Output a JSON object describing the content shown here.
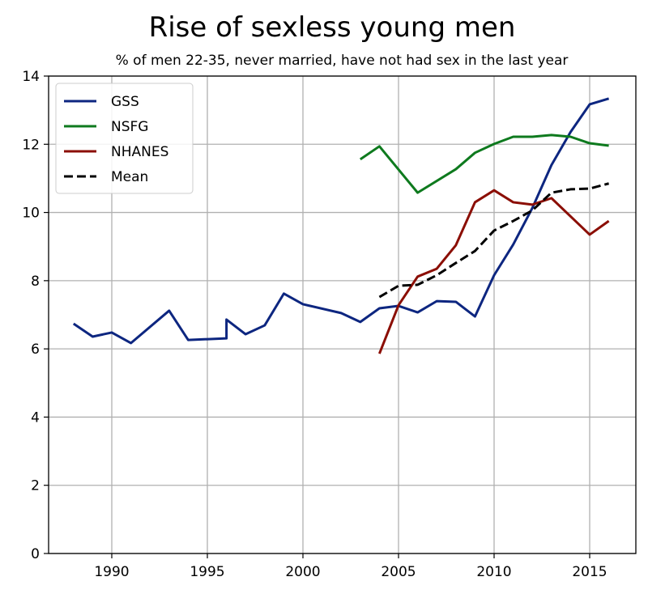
{
  "chart_data": {
    "type": "line",
    "title": "Rise of sexless young men",
    "subtitle": "% of men 22-35, never married, have not had sex in the last year",
    "xlabel": "",
    "ylabel": "",
    "xlim": [
      1986.5,
      2017.7
    ],
    "ylim": [
      0,
      14
    ],
    "xticks": [
      "1990",
      "1995",
      "2000",
      "2005",
      "2010",
      "2015"
    ],
    "yticks": [
      "0",
      "2",
      "4",
      "6",
      "8",
      "10",
      "12",
      "14"
    ],
    "grid": true,
    "legend_position": "top-left",
    "series": [
      {
        "name": "GSS",
        "color": "#0d2680",
        "dash": false,
        "x": [
          1988,
          1989,
          1990,
          1991,
          1993,
          1994,
          1996,
          1996,
          1997,
          1998,
          1999,
          2000,
          2002,
          2003,
          2004,
          2005,
          2006,
          2007,
          2008,
          2009,
          2010,
          2011,
          2012,
          2013,
          2014,
          2015,
          2016
        ],
        "y": [
          6.74,
          6.36,
          6.48,
          6.17,
          7.12,
          6.26,
          6.31,
          6.86,
          6.43,
          6.69,
          7.62,
          7.31,
          7.05,
          6.79,
          7.19,
          7.26,
          7.07,
          7.4,
          7.38,
          6.95,
          8.16,
          9.06,
          10.13,
          11.39,
          12.36,
          13.17,
          13.34
        ]
      },
      {
        "name": "NSFG",
        "color": "#0e7a1e",
        "dash": false,
        "x": [
          2003,
          2004,
          2006,
          2008,
          2009,
          2010,
          2011,
          2012,
          2013,
          2014,
          2015,
          2016
        ],
        "y": [
          11.56,
          11.94,
          10.58,
          11.27,
          11.75,
          12.01,
          12.22,
          12.22,
          12.27,
          12.22,
          12.03,
          11.96
        ]
      },
      {
        "name": "NHANES",
        "color": "#8b0e04",
        "dash": false,
        "x": [
          2004,
          2005,
          2006,
          2007,
          2008,
          2009,
          2010,
          2011,
          2012,
          2013,
          2015,
          2016
        ],
        "y": [
          5.86,
          7.28,
          8.12,
          8.35,
          9.04,
          10.3,
          10.65,
          10.3,
          10.23,
          10.42,
          9.35,
          9.75
        ]
      },
      {
        "name": "Mean",
        "color": "#000000",
        "dash": true,
        "x": [
          2004,
          2005,
          2006,
          2007,
          2008,
          2009,
          2010,
          2011,
          2012,
          2013,
          2014,
          2015,
          2016
        ],
        "y": [
          7.52,
          7.85,
          7.88,
          8.16,
          8.52,
          8.87,
          9.47,
          9.75,
          10.06,
          10.58,
          10.68,
          10.7,
          10.85
        ]
      }
    ]
  }
}
